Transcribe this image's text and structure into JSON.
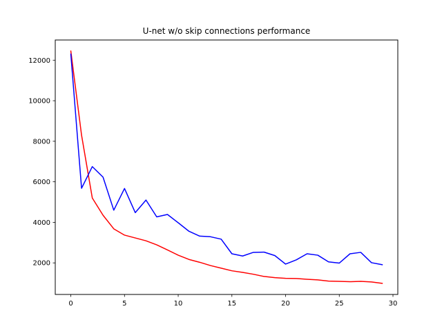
{
  "chart_data": {
    "type": "line",
    "title": "U-net w/o skip connections performance",
    "xlabel": "",
    "ylabel": "",
    "xlim": [
      -1.45,
      30.45
    ],
    "ylim": [
      442.8,
      12996
    ],
    "xticks": [
      0,
      5,
      10,
      15,
      20,
      25,
      30
    ],
    "yticks": [
      2000,
      4000,
      6000,
      8000,
      10000,
      12000
    ],
    "grid": false,
    "legend": "none",
    "x": [
      0,
      1,
      2,
      3,
      4,
      5,
      6,
      7,
      8,
      9,
      10,
      11,
      12,
      13,
      14,
      15,
      16,
      17,
      18,
      19,
      20,
      21,
      22,
      23,
      24,
      25,
      26,
      27,
      28,
      29
    ],
    "series": [
      {
        "color": "#ff0000",
        "values": [
          12450,
          8300,
          5200,
          4350,
          3680,
          3370,
          3230,
          3090,
          2890,
          2640,
          2380,
          2170,
          2030,
          1870,
          1740,
          1610,
          1530,
          1440,
          1330,
          1270,
          1240,
          1230,
          1190,
          1160,
          1100,
          1090,
          1070,
          1090,
          1060,
          990
        ]
      },
      {
        "color": "#0000ff",
        "values": [
          12300,
          5680,
          6750,
          6230,
          4600,
          5670,
          4480,
          5100,
          4270,
          4390,
          3980,
          3560,
          3320,
          3290,
          3170,
          2450,
          2340,
          2520,
          2530,
          2360,
          1940,
          2150,
          2450,
          2380,
          2050,
          1990,
          2450,
          2520,
          2010,
          1910
        ]
      }
    ]
  }
}
